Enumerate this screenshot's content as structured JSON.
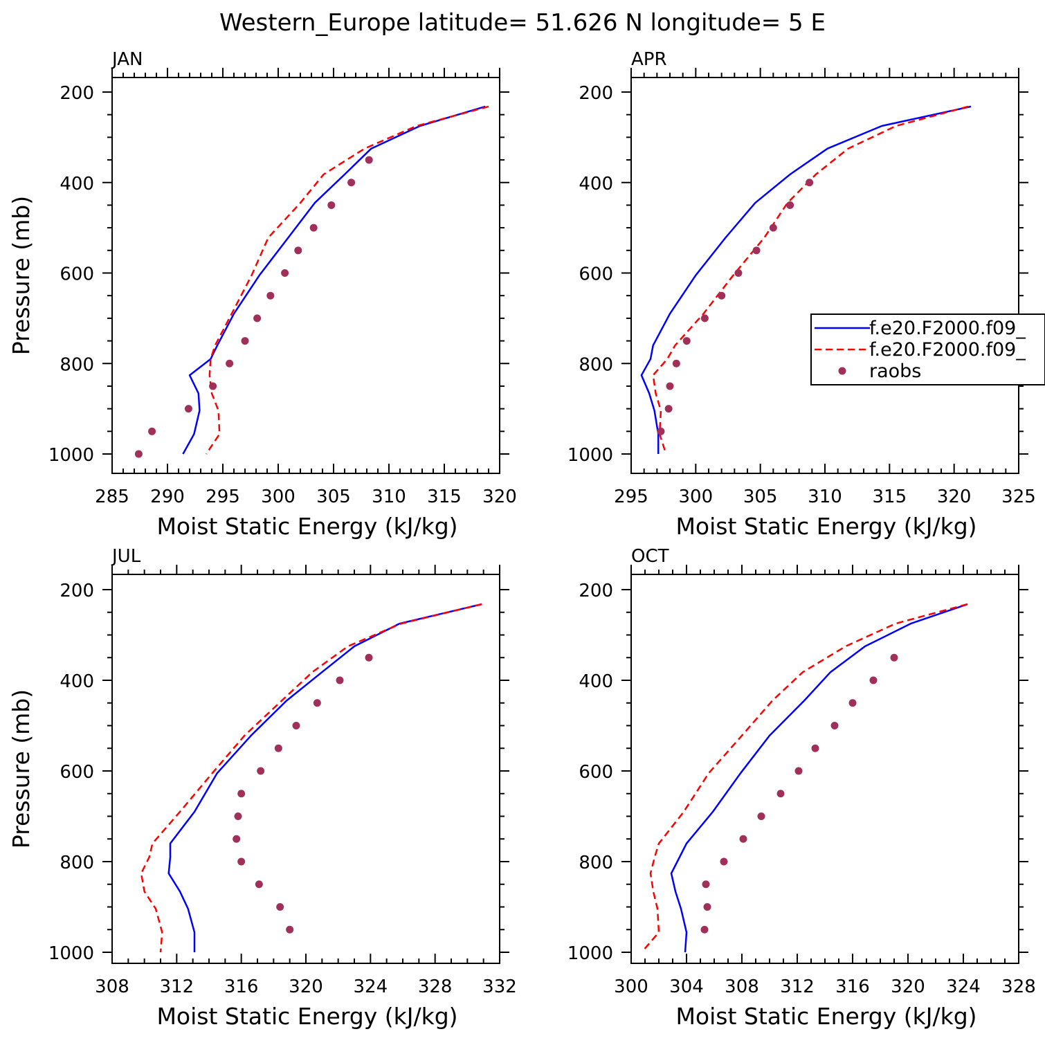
{
  "title": "Western_Europe  latitude= 51.626 N longitude= 5 E",
  "colors": {
    "model1": "#0000ff",
    "model2": "#ff0000",
    "raobs": "#a0305a",
    "axes": "#000000"
  },
  "legend": {
    "placement": "right, panel APR",
    "entries": [
      {
        "label": "f.e20.F2000.f09_",
        "style": "solid",
        "color": "#0000ff"
      },
      {
        "label": "f.e20.F2000.f09_",
        "style": "dashed",
        "color": "#ff0000"
      },
      {
        "label": "raobs",
        "style": "dot",
        "color": "#a0305a"
      }
    ]
  },
  "chart_data": [
    {
      "type": "line",
      "panel": "JAN",
      "xlabel": "Moist Static Energy (kJ/kg)",
      "ylabel": "Pressure (mb)",
      "xlim": [
        285,
        320
      ],
      "xticks": [
        285,
        290,
        295,
        300,
        305,
        310,
        315,
        320
      ],
      "xminor": 1,
      "ylim": [
        1000,
        200
      ],
      "yticks": [
        200,
        400,
        600,
        800,
        1000
      ],
      "series": [
        {
          "name": "f.e20.F2000.f09_",
          "style": "solid",
          "color": "#0000ff",
          "points": [
            [
              318.7,
              232
            ],
            [
              312.8,
              275
            ],
            [
              308.4,
              325
            ],
            [
              306.0,
              382
            ],
            [
              303.3,
              445
            ],
            [
              300.9,
              522
            ],
            [
              298.3,
              605
            ],
            [
              296.0,
              690
            ],
            [
              294.5,
              760
            ],
            [
              293.9,
              790
            ],
            [
              292.0,
              826
            ],
            [
              292.8,
              866
            ],
            [
              292.9,
              904
            ],
            [
              292.4,
              956
            ],
            [
              291.4,
              1000
            ]
          ]
        },
        {
          "name": "f.e20.F2000.f09_",
          "style": "dashed",
          "color": "#ff0000",
          "points": [
            [
              319.0,
              232
            ],
            [
              312.5,
              275
            ],
            [
              307.8,
              325
            ],
            [
              304.1,
              382
            ],
            [
              302.0,
              445
            ],
            [
              299.1,
              522
            ],
            [
              297.6,
              605
            ],
            [
              295.8,
              690
            ],
            [
              294.3,
              760
            ],
            [
              293.9,
              790
            ],
            [
              293.8,
              826
            ],
            [
              294.0,
              866
            ],
            [
              294.6,
              904
            ],
            [
              294.7,
              956
            ],
            [
              293.5,
              1000
            ]
          ]
        },
        {
          "name": "raobs",
          "style": "dot",
          "color": "#a0305a",
          "points": [
            [
              308.2,
              350
            ],
            [
              306.6,
              400
            ],
            [
              304.8,
              450
            ],
            [
              303.2,
              500
            ],
            [
              301.8,
              550
            ],
            [
              300.6,
              600
            ],
            [
              299.3,
              650
            ],
            [
              298.1,
              700
            ],
            [
              297.0,
              750
            ],
            [
              295.6,
              800
            ],
            [
              294.1,
              850
            ],
            [
              291.9,
              900
            ],
            [
              288.6,
              950
            ],
            [
              287.4,
              1000
            ]
          ]
        }
      ]
    },
    {
      "type": "line",
      "panel": "APR",
      "xlabel": "Moist Static Energy (kJ/kg)",
      "ylabel": "",
      "xlim": [
        295,
        325
      ],
      "xticks": [
        295,
        300,
        305,
        310,
        315,
        320,
        325
      ],
      "xminor": 1,
      "ylim": [
        1000,
        200
      ],
      "yticks": [
        200,
        400,
        600,
        800,
        1000
      ],
      "series": [
        {
          "name": "f.e20.F2000.f09_",
          "style": "solid",
          "color": "#0000ff",
          "points": [
            [
              321.3,
              232
            ],
            [
              314.4,
              275
            ],
            [
              310.2,
              325
            ],
            [
              307.3,
              382
            ],
            [
              304.6,
              445
            ],
            [
              302.3,
              522
            ],
            [
              300.0,
              605
            ],
            [
              298.0,
              690
            ],
            [
              296.7,
              760
            ],
            [
              296.5,
              790
            ],
            [
              295.8,
              826
            ],
            [
              296.4,
              866
            ],
            [
              296.8,
              904
            ],
            [
              297.1,
              956
            ],
            [
              297.1,
              1000
            ]
          ]
        },
        {
          "name": "f.e20.F2000.f09_",
          "style": "dashed",
          "color": "#ff0000",
          "points": [
            [
              321.1,
              232
            ],
            [
              315.5,
              275
            ],
            [
              311.8,
              325
            ],
            [
              309.3,
              382
            ],
            [
              307.1,
              445
            ],
            [
              305.3,
              522
            ],
            [
              302.9,
              605
            ],
            [
              300.6,
              690
            ],
            [
              298.4,
              760
            ],
            [
              297.8,
              790
            ],
            [
              296.7,
              826
            ],
            [
              296.9,
              866
            ],
            [
              297.3,
              904
            ],
            [
              297.2,
              956
            ],
            [
              297.7,
              1000
            ]
          ]
        },
        {
          "name": "raobs",
          "style": "dot",
          "color": "#a0305a",
          "points": [
            [
              308.8,
              400
            ],
            [
              307.3,
              450
            ],
            [
              306.0,
              500
            ],
            [
              304.7,
              550
            ],
            [
              303.3,
              600
            ],
            [
              302.0,
              650
            ],
            [
              300.7,
              700
            ],
            [
              299.3,
              750
            ],
            [
              298.5,
              800
            ],
            [
              298.0,
              850
            ],
            [
              297.9,
              900
            ],
            [
              297.3,
              950
            ]
          ]
        }
      ]
    },
    {
      "type": "line",
      "panel": "JUL",
      "xlabel": "Moist Static Energy (kJ/kg)",
      "ylabel": "Pressure (mb)",
      "xlim": [
        308,
        332
      ],
      "xticks": [
        308,
        312,
        316,
        320,
        324,
        328,
        332
      ],
      "xminor": 1,
      "ylim": [
        1000,
        200
      ],
      "yticks": [
        200,
        400,
        600,
        800,
        1000
      ],
      "series": [
        {
          "name": "f.e20.F2000.f09_",
          "style": "solid",
          "color": "#0000ff",
          "points": [
            [
              330.9,
              232
            ],
            [
              325.8,
              275
            ],
            [
              323.0,
              325
            ],
            [
              321.0,
              382
            ],
            [
              318.8,
              445
            ],
            [
              316.6,
              522
            ],
            [
              314.5,
              605
            ],
            [
              313.1,
              690
            ],
            [
              311.6,
              760
            ],
            [
              311.6,
              790
            ],
            [
              311.5,
              826
            ],
            [
              312.2,
              866
            ],
            [
              312.7,
              904
            ],
            [
              313.1,
              956
            ],
            [
              313.1,
              1000
            ]
          ]
        },
        {
          "name": "f.e20.F2000.f09_",
          "style": "dashed",
          "color": "#ff0000",
          "points": [
            [
              330.9,
              232
            ],
            [
              325.9,
              275
            ],
            [
              322.6,
              325
            ],
            [
              320.4,
              382
            ],
            [
              318.5,
              445
            ],
            [
              316.2,
              522
            ],
            [
              314.2,
              605
            ],
            [
              312.2,
              690
            ],
            [
              310.5,
              760
            ],
            [
              310.3,
              790
            ],
            [
              309.8,
              826
            ],
            [
              310.0,
              866
            ],
            [
              310.7,
              904
            ],
            [
              311.1,
              956
            ],
            [
              311.0,
              1000
            ]
          ]
        },
        {
          "name": "raobs",
          "style": "dot",
          "color": "#a0305a",
          "points": [
            [
              323.9,
              350
            ],
            [
              322.1,
              400
            ],
            [
              320.7,
              450
            ],
            [
              319.4,
              500
            ],
            [
              318.3,
              550
            ],
            [
              317.2,
              600
            ],
            [
              316.0,
              650
            ],
            [
              315.8,
              700
            ],
            [
              315.7,
              750
            ],
            [
              316.0,
              800
            ],
            [
              317.1,
              850
            ],
            [
              318.4,
              900
            ],
            [
              319.0,
              950
            ]
          ]
        }
      ]
    },
    {
      "type": "line",
      "panel": "OCT",
      "xlabel": "Moist Static Energy (kJ/kg)",
      "ylabel": "",
      "xlim": [
        300,
        328
      ],
      "xticks": [
        300,
        304,
        308,
        312,
        316,
        320,
        324,
        328
      ],
      "xminor": 1,
      "ylim": [
        1000,
        200
      ],
      "yticks": [
        200,
        400,
        600,
        800,
        1000
      ],
      "series": [
        {
          "name": "f.e20.F2000.f09_",
          "style": "solid",
          "color": "#0000ff",
          "points": [
            [
              324.3,
              232
            ],
            [
              320.2,
              275
            ],
            [
              316.9,
              325
            ],
            [
              314.4,
              382
            ],
            [
              312.5,
              445
            ],
            [
              310.0,
              522
            ],
            [
              307.9,
              605
            ],
            [
              305.9,
              690
            ],
            [
              304.0,
              760
            ],
            [
              303.5,
              790
            ],
            [
              302.9,
              826
            ],
            [
              303.2,
              866
            ],
            [
              303.6,
              904
            ],
            [
              304.0,
              956
            ],
            [
              303.9,
              1000
            ]
          ]
        },
        {
          "name": "f.e20.F2000.f09_",
          "style": "dashed",
          "color": "#ff0000",
          "points": [
            [
              324.3,
              232
            ],
            [
              319.1,
              275
            ],
            [
              315.5,
              325
            ],
            [
              312.4,
              382
            ],
            [
              310.2,
              445
            ],
            [
              308.0,
              522
            ],
            [
              305.6,
              605
            ],
            [
              303.8,
              690
            ],
            [
              302.0,
              760
            ],
            [
              301.7,
              790
            ],
            [
              301.4,
              826
            ],
            [
              301.6,
              866
            ],
            [
              301.9,
              904
            ],
            [
              302.0,
              956
            ],
            [
              300.9,
              995
            ]
          ]
        },
        {
          "name": "raobs",
          "style": "dot",
          "color": "#a0305a",
          "points": [
            [
              319.0,
              350
            ],
            [
              317.5,
              400
            ],
            [
              316.0,
              450
            ],
            [
              314.7,
              500
            ],
            [
              313.3,
              550
            ],
            [
              312.1,
              600
            ],
            [
              310.8,
              650
            ],
            [
              309.4,
              700
            ],
            [
              308.1,
              750
            ],
            [
              306.7,
              800
            ],
            [
              305.4,
              850
            ],
            [
              305.5,
              900
            ],
            [
              305.3,
              950
            ]
          ]
        }
      ]
    }
  ]
}
